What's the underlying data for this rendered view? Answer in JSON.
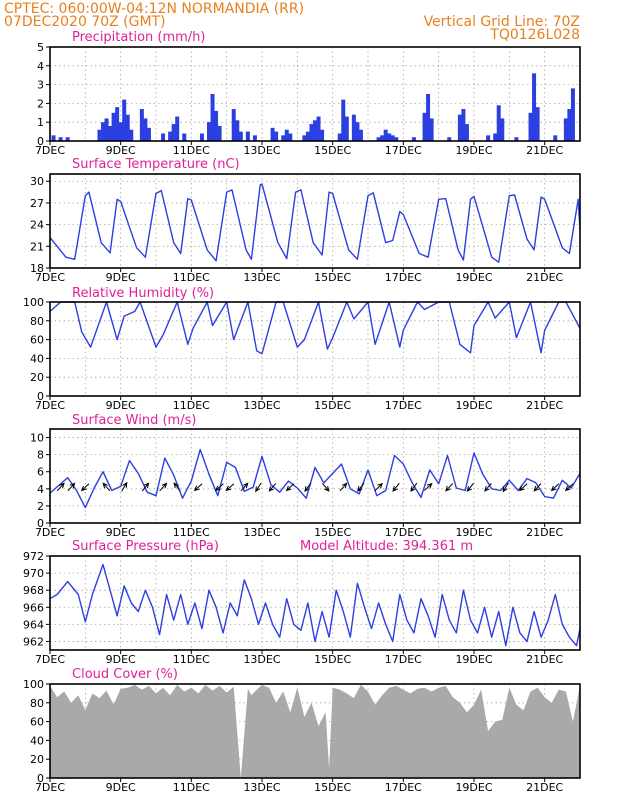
{
  "header": {
    "station": "CPTEC:   060:00W-04:12N  NORMANDIA (RR)",
    "datetime": "07DEC2020 70Z (GMT)",
    "grid_line": "Vertical Grid Line: 70Z",
    "code": "TQ0126L028"
  },
  "colors": {
    "line": "#2c3fe0",
    "bar": "#2c3fe0",
    "cloud": "#a9a9a9",
    "title": "#e0209a",
    "header": "#e8801c"
  },
  "chart_data": [
    {
      "id": "precip",
      "type": "bar",
      "title": "Precipitation (mm/h)",
      "xlim": [
        7,
        22
      ],
      "ylim": [
        0,
        5
      ],
      "yticks": [
        0,
        1,
        2,
        3,
        4,
        5
      ],
      "xticks": [
        "7DEC",
        "9DEC",
        "11DEC",
        "13DEC",
        "15DEC",
        "17DEC",
        "19DEC",
        "21DEC"
      ],
      "x": [
        7.1,
        7.3,
        7.5,
        8.4,
        8.5,
        8.6,
        8.7,
        8.8,
        8.9,
        9.0,
        9.1,
        9.2,
        9.3,
        9.6,
        9.7,
        9.8,
        10.2,
        10.4,
        10.5,
        10.6,
        10.8,
        11.3,
        11.5,
        11.6,
        11.7,
        11.8,
        12.2,
        12.3,
        12.4,
        12.6,
        12.8,
        13.3,
        13.4,
        13.6,
        13.7,
        13.8,
        14.2,
        14.3,
        14.4,
        14.5,
        14.6,
        14.7,
        15.2,
        15.3,
        15.4,
        15.6,
        15.7,
        15.8,
        16.3,
        16.4,
        16.5,
        16.6,
        16.7,
        16.8,
        17.3,
        17.6,
        17.7,
        17.8,
        18.3,
        18.6,
        18.7,
        18.8,
        19.4,
        19.6,
        19.7,
        19.8,
        20.2,
        20.6,
        20.7,
        20.8,
        21.3,
        21.6,
        21.7,
        21.8
      ],
      "values": [
        0.3,
        0.2,
        0.2,
        0.6,
        1.0,
        1.2,
        0.8,
        1.5,
        1.8,
        1.0,
        2.2,
        1.4,
        0.6,
        1.7,
        1.2,
        0.7,
        0.4,
        0.5,
        0.9,
        1.3,
        0.4,
        0.4,
        1.0,
        2.5,
        1.6,
        0.8,
        1.7,
        1.1,
        0.5,
        0.5,
        0.3,
        0.7,
        0.5,
        0.3,
        0.6,
        0.4,
        0.3,
        0.5,
        0.9,
        1.1,
        1.3,
        0.6,
        0.4,
        2.2,
        1.3,
        1.4,
        1.0,
        0.6,
        0.2,
        0.3,
        0.6,
        0.4,
        0.3,
        0.2,
        0.2,
        1.5,
        2.5,
        1.2,
        0.2,
        1.4,
        1.7,
        0.9,
        0.3,
        0.4,
        1.9,
        1.2,
        0.2,
        1.5,
        3.6,
        1.8,
        0.3,
        1.2,
        1.7,
        2.8
      ]
    },
    {
      "id": "temp",
      "type": "line",
      "title": "Surface Temperature (nC)",
      "xlim": [
        7,
        22
      ],
      "ylim": [
        18,
        31
      ],
      "yticks": [
        18,
        21,
        24,
        27,
        30
      ],
      "xticks": [
        "7DEC",
        "9DEC",
        "11DEC",
        "13DEC",
        "15DEC",
        "17DEC",
        "19DEC",
        "21DEC"
      ],
      "x": [
        7.0,
        7.2,
        7.45,
        7.7,
        8.0,
        8.1,
        8.45,
        8.7,
        8.9,
        9.0,
        9.45,
        9.7,
        10.0,
        10.15,
        10.5,
        10.7,
        10.9,
        11.0,
        11.45,
        11.7,
        12.0,
        12.15,
        12.55,
        12.7,
        12.95,
        13.0,
        13.45,
        13.7,
        13.95,
        14.1,
        14.45,
        14.7,
        14.9,
        15.0,
        15.45,
        15.7,
        16.0,
        16.15,
        16.5,
        16.7,
        16.9,
        17.0,
        17.45,
        17.7,
        18.0,
        18.2,
        18.55,
        18.7,
        18.9,
        19.0,
        19.5,
        19.7,
        20.0,
        20.15,
        20.5,
        20.7,
        20.9,
        21.0,
        21.5,
        21.7,
        21.95,
        22.0
      ],
      "values": [
        22.2,
        21.0,
        19.5,
        19.2,
        28.0,
        28.5,
        21.5,
        20.1,
        27.5,
        27.2,
        20.8,
        19.5,
        28.3,
        28.7,
        21.5,
        20.0,
        27.6,
        27.4,
        20.5,
        19.0,
        28.5,
        28.8,
        20.5,
        19.2,
        29.5,
        29.6,
        21.5,
        19.3,
        28.5,
        28.8,
        21.5,
        19.8,
        28.5,
        28.3,
        20.5,
        19.2,
        28.0,
        28.4,
        21.5,
        21.8,
        25.8,
        25.4,
        20.0,
        19.5,
        27.5,
        27.6,
        20.5,
        19.1,
        27.5,
        27.9,
        19.5,
        18.8,
        28.0,
        28.1,
        22.0,
        20.5,
        27.8,
        27.5,
        20.8,
        20.0,
        27.5,
        23.3
      ]
    },
    {
      "id": "rh",
      "type": "line",
      "title": "Relative Humidity (%)",
      "xlim": [
        7,
        22
      ],
      "ylim": [
        0,
        100
      ],
      "yticks": [
        0,
        20,
        40,
        60,
        80,
        100
      ],
      "xticks": [
        "7DEC",
        "9DEC",
        "11DEC",
        "13DEC",
        "15DEC",
        "17DEC",
        "19DEC",
        "21DEC"
      ],
      "x": [
        7.0,
        7.3,
        7.7,
        7.9,
        8.15,
        8.6,
        8.9,
        9.1,
        9.4,
        9.55,
        10.0,
        10.2,
        10.6,
        10.9,
        11.05,
        11.45,
        11.6,
        12.0,
        12.2,
        12.6,
        12.85,
        13.0,
        13.4,
        13.6,
        14.0,
        14.2,
        14.6,
        14.85,
        15.0,
        15.4,
        15.6,
        16.0,
        16.2,
        16.6,
        16.9,
        17.0,
        17.4,
        17.6,
        18.0,
        18.3,
        18.6,
        18.9,
        19.0,
        19.4,
        19.6,
        20.0,
        20.2,
        20.6,
        20.9,
        21.0,
        21.4,
        21.6,
        22.0
      ],
      "values": [
        90,
        100,
        100,
        68,
        52,
        100,
        60,
        85,
        90,
        100,
        52,
        65,
        100,
        55,
        72,
        100,
        75,
        100,
        60,
        100,
        48,
        45,
        100,
        100,
        52,
        60,
        100,
        50,
        62,
        100,
        82,
        100,
        55,
        100,
        52,
        70,
        100,
        92,
        100,
        100,
        55,
        46,
        75,
        100,
        83,
        100,
        62,
        100,
        46,
        70,
        100,
        100,
        72
      ]
    },
    {
      "id": "wind",
      "type": "line",
      "title": "Surface Wind (m/s)",
      "xlim": [
        7,
        22
      ],
      "ylim": [
        0,
        11
      ],
      "yticks": [
        0,
        2,
        4,
        6,
        8,
        10
      ],
      "xticks": [
        "7DEC",
        "9DEC",
        "11DEC",
        "13DEC",
        "15DEC",
        "17DEC",
        "19DEC",
        "21DEC"
      ],
      "x": [
        7.0,
        7.25,
        7.5,
        7.75,
        8.0,
        8.25,
        8.5,
        8.75,
        9.0,
        9.25,
        9.5,
        9.75,
        10.0,
        10.25,
        10.5,
        10.75,
        11.0,
        11.25,
        11.5,
        11.75,
        12.0,
        12.25,
        12.5,
        12.75,
        13.0,
        13.25,
        13.5,
        13.75,
        14.0,
        14.25,
        14.5,
        14.75,
        15.0,
        15.25,
        15.5,
        15.75,
        16.0,
        16.25,
        16.5,
        16.75,
        17.0,
        17.25,
        17.5,
        17.75,
        18.0,
        18.25,
        18.5,
        18.75,
        19.0,
        19.25,
        19.5,
        19.75,
        20.0,
        20.25,
        20.5,
        20.75,
        21.0,
        21.25,
        21.5,
        21.75,
        22.0
      ],
      "values": [
        3.5,
        4.4,
        5.3,
        3.8,
        1.8,
        4.1,
        6.0,
        3.8,
        4.3,
        7.3,
        5.8,
        3.6,
        3.2,
        7.6,
        5.6,
        2.9,
        4.9,
        8.6,
        5.7,
        3.2,
        7.1,
        6.5,
        3.7,
        4.2,
        7.8,
        4.5,
        3.6,
        4.9,
        4.1,
        2.9,
        6.5,
        4.7,
        5.8,
        6.9,
        4.0,
        3.4,
        6.2,
        3.2,
        3.8,
        7.9,
        6.9,
        4.7,
        3.0,
        6.2,
        4.6,
        7.9,
        4.1,
        3.8,
        8.2,
        5.7,
        4.0,
        3.8,
        5.0,
        3.8,
        5.2,
        4.7,
        3.1,
        2.9,
        5.0,
        4.1,
        5.8
      ],
      "arrows": {
        "x": [
          7.3,
          7.6,
          8.0,
          8.6,
          9.1,
          9.7,
          10.2,
          10.6,
          11.2,
          11.8,
          12.1,
          12.5,
          12.9,
          13.3,
          13.8,
          14.3,
          14.8,
          15.3,
          15.8,
          16.3,
          16.8,
          17.3,
          17.7,
          18.3,
          18.9,
          19.4,
          19.9,
          20.4,
          20.8,
          21.3,
          21.7
        ],
        "u": [
          1.2,
          1.0,
          -1.6,
          -0.9,
          0.9,
          1.0,
          1.2,
          -0.8,
          -1.7,
          -1.6,
          -1.5,
          1.2,
          -1.0,
          -1.1,
          -1.5,
          -1.1,
          1.0,
          1.1,
          -1.3,
          1.5,
          -1.4,
          -1.1,
          1.6,
          -1.4,
          -1.3,
          -1.3,
          -0.8,
          -1.8,
          -1.4,
          -1.6,
          -1.5
        ],
        "v": [
          1.3,
          1.1,
          -1.5,
          1.0,
          1.5,
          1.2,
          1.3,
          1.0,
          -1.5,
          -1.4,
          -1.3,
          1.3,
          -1.5,
          -1.3,
          -1.4,
          -1.5,
          -1.2,
          1.2,
          -1.6,
          1.5,
          -1.7,
          -1.5,
          1.5,
          -1.5,
          -1.6,
          -1.5,
          -1.3,
          -1.6,
          -1.5,
          -1.5,
          -1.4
        ]
      }
    },
    {
      "id": "pres",
      "type": "line",
      "title": "Surface Pressure (hPa)",
      "annotation": "Model Altitude: 394.361 m",
      "xlim": [
        7,
        22
      ],
      "ylim": [
        961,
        972
      ],
      "yticks": [
        962,
        964,
        966,
        968,
        970,
        972
      ],
      "xticks": [
        "7DEC",
        "9DEC",
        "11DEC",
        "13DEC",
        "15DEC",
        "17DEC",
        "19DEC",
        "21DEC"
      ],
      "x": [
        7.0,
        7.2,
        7.5,
        7.8,
        8.0,
        8.2,
        8.5,
        8.7,
        8.9,
        9.1,
        9.3,
        9.5,
        9.7,
        9.9,
        10.1,
        10.3,
        10.5,
        10.7,
        10.9,
        11.1,
        11.3,
        11.5,
        11.7,
        11.9,
        12.1,
        12.3,
        12.5,
        12.7,
        12.9,
        13.1,
        13.3,
        13.5,
        13.7,
        13.9,
        14.1,
        14.3,
        14.5,
        14.7,
        14.9,
        15.1,
        15.3,
        15.5,
        15.7,
        15.9,
        16.1,
        16.3,
        16.5,
        16.7,
        16.9,
        17.1,
        17.3,
        17.5,
        17.7,
        17.9,
        18.1,
        18.3,
        18.5,
        18.7,
        18.9,
        19.1,
        19.3,
        19.5,
        19.7,
        19.9,
        20.1,
        20.3,
        20.5,
        20.7,
        20.9,
        21.1,
        21.3,
        21.5,
        21.7,
        21.9,
        22.0
      ],
      "values": [
        967.0,
        967.5,
        969.0,
        967.5,
        964.3,
        967.5,
        971.0,
        968.0,
        965.0,
        968.5,
        966.5,
        965.5,
        968.0,
        966.0,
        962.8,
        967.5,
        964.5,
        967.5,
        964.0,
        966.5,
        963.5,
        968.0,
        966.0,
        963.0,
        966.5,
        965.0,
        969.2,
        967.0,
        964.0,
        966.5,
        964.0,
        962.5,
        967.0,
        964.0,
        963.3,
        966.5,
        962.0,
        965.5,
        962.5,
        968.0,
        965.5,
        962.5,
        968.8,
        966.0,
        963.5,
        966.5,
        964.0,
        962.0,
        967.5,
        964.5,
        963.0,
        967.0,
        965.0,
        962.5,
        967.5,
        964.5,
        963.0,
        968.0,
        964.5,
        963.0,
        966.0,
        962.5,
        965.5,
        961.5,
        966.0,
        963.0,
        962.0,
        965.5,
        962.5,
        964.5,
        967.5,
        964.0,
        962.5,
        961.5,
        963.5
      ]
    },
    {
      "id": "cloud",
      "type": "area",
      "title": "Cloud Cover (%)",
      "xlim": [
        7,
        22
      ],
      "ylim": [
        0,
        100
      ],
      "yticks": [
        0,
        20,
        40,
        60,
        80,
        100
      ],
      "xticks": [
        "7DEC",
        "9DEC",
        "11DEC",
        "13DEC",
        "15DEC",
        "17DEC",
        "19DEC",
        "21DEC"
      ],
      "x": [
        7.0,
        7.2,
        7.4,
        7.6,
        7.8,
        8.0,
        8.2,
        8.4,
        8.6,
        8.8,
        9.0,
        9.2,
        9.4,
        9.6,
        9.8,
        10.0,
        10.2,
        10.4,
        10.6,
        10.8,
        11.0,
        11.2,
        11.4,
        11.6,
        11.8,
        12.0,
        12.2,
        12.4,
        12.6,
        12.7,
        12.8,
        13.0,
        13.2,
        13.4,
        13.6,
        13.8,
        14.0,
        14.2,
        14.4,
        14.6,
        14.8,
        14.9,
        15.0,
        15.2,
        15.4,
        15.6,
        15.8,
        16.0,
        16.2,
        16.4,
        16.6,
        16.8,
        17.0,
        17.2,
        17.4,
        17.6,
        17.8,
        18.0,
        18.2,
        18.4,
        18.6,
        18.8,
        19.0,
        19.2,
        19.4,
        19.6,
        19.8,
        20.0,
        20.2,
        20.4,
        20.6,
        20.8,
        21.0,
        21.2,
        21.4,
        21.6,
        21.8,
        22.0
      ],
      "values": [
        98,
        86,
        92,
        80,
        88,
        72,
        90,
        85,
        93,
        78,
        95,
        96,
        99,
        94,
        98,
        90,
        96,
        88,
        99,
        92,
        96,
        90,
        99,
        93,
        98,
        91,
        97,
        0,
        95,
        88,
        92,
        99,
        96,
        80,
        92,
        70,
        96,
        65,
        80,
        55,
        70,
        10,
        96,
        94,
        90,
        85,
        99,
        92,
        78,
        88,
        96,
        98,
        94,
        90,
        95,
        96,
        92,
        96,
        98,
        86,
        80,
        70,
        78,
        94,
        50,
        60,
        62,
        96,
        78,
        72,
        92,
        96,
        86,
        80,
        94,
        92,
        60,
        98
      ]
    }
  ]
}
